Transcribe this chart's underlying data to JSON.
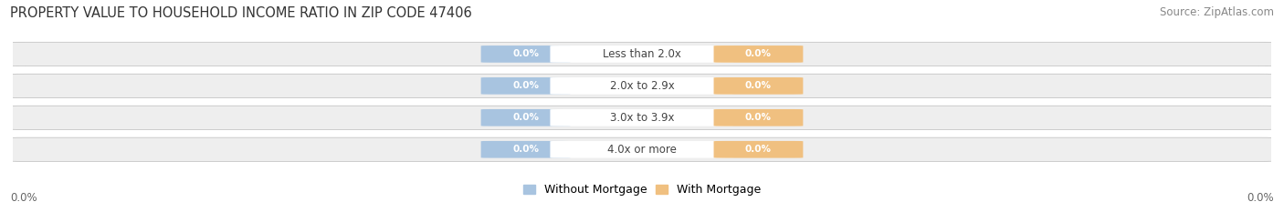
{
  "title": "PROPERTY VALUE TO HOUSEHOLD INCOME RATIO IN ZIP CODE 47406",
  "source": "Source: ZipAtlas.com",
  "categories": [
    "Less than 2.0x",
    "2.0x to 2.9x",
    "3.0x to 3.9x",
    "4.0x or more"
  ],
  "without_mortgage": [
    0.0,
    0.0,
    0.0,
    0.0
  ],
  "with_mortgage": [
    0.0,
    0.0,
    0.0,
    0.0
  ],
  "without_mortgage_color": "#a8c4e0",
  "with_mortgage_color": "#f0c080",
  "row_bg_color": "#eeeeee",
  "row_border_color": "#cccccc",
  "title_fontsize": 10.5,
  "source_fontsize": 8.5,
  "label_fontsize": 8.5,
  "value_fontsize": 7.5,
  "legend_fontsize": 9,
  "x_left_label": "0.0%",
  "x_right_label": "0.0%",
  "background_color": "#ffffff"
}
